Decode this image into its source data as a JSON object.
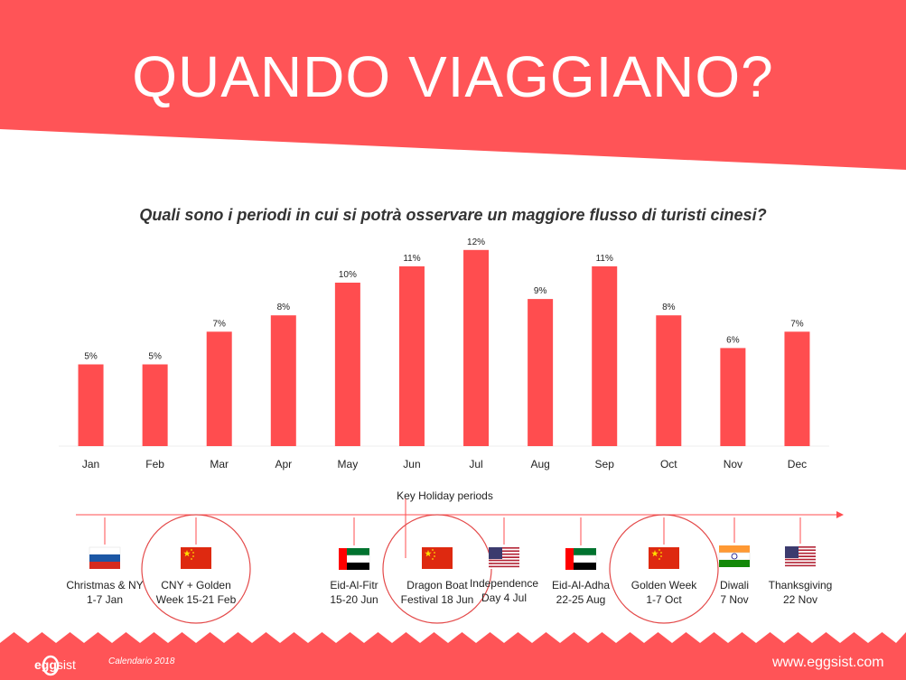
{
  "title": "QUANDO VIAGGIANO?",
  "subtitle": "Quali sono i periodi in cui si potrà osservare un maggiore flusso di turisti cinesi?",
  "colors": {
    "brand_red": "#ff4d4f",
    "header_red": "#ff5457"
  },
  "chart_data": {
    "type": "bar",
    "categories": [
      "Jan",
      "Feb",
      "Mar",
      "Apr",
      "May",
      "Jun",
      "Jul",
      "Aug",
      "Sep",
      "Oct",
      "Nov",
      "Dec"
    ],
    "values": [
      5,
      5,
      7,
      8,
      10,
      11,
      12,
      9,
      11,
      8,
      6,
      7
    ],
    "value_labels": [
      "5%",
      "5%",
      "7%",
      "8%",
      "10%",
      "11%",
      "12%",
      "9%",
      "11%",
      "8%",
      "6%",
      "7%"
    ],
    "unit": "%",
    "xlabel": "",
    "ylabel": "",
    "ylim": [
      0,
      12
    ],
    "grid": false,
    "legend": "none"
  },
  "timeline": {
    "title": "Key Holiday periods",
    "holidays": [
      {
        "line1": "Christmas & NY",
        "line2": "1-7 Jan",
        "flag": "russia-flag",
        "circled": false
      },
      {
        "line1": "CNY + Golden",
        "line2": "Week 15-21 Feb",
        "flag": "china-flag",
        "circled": true
      },
      {
        "line1": "Eid-Al-Fitr",
        "line2": "15-20 Jun",
        "flag": "uae-flag",
        "circled": false
      },
      {
        "line1": "Dragon Boat",
        "line2": "Festival 18 Jun",
        "flag": "china-flag",
        "circled": true
      },
      {
        "line1": "Independence",
        "line2": "Day 4 Jul",
        "flag": "usa-flag",
        "circled": false
      },
      {
        "line1": "Eid-Al-Adha",
        "line2": "22-25 Aug",
        "flag": "uae-flag",
        "circled": false
      },
      {
        "line1": "Golden Week",
        "line2": "1-7 Oct",
        "flag": "china-flag",
        "circled": true
      },
      {
        "line1": "Diwali",
        "line2": "7 Nov",
        "flag": "india-flag",
        "circled": false
      },
      {
        "line1": "Thanksgiving",
        "line2": "22 Nov",
        "flag": "usa-flag",
        "circled": false
      }
    ]
  },
  "footer": {
    "logo_prefix": "egg",
    "logo_suffix": "sist",
    "calendar": "Calendario 2018",
    "website": "www.eggsist.com"
  }
}
